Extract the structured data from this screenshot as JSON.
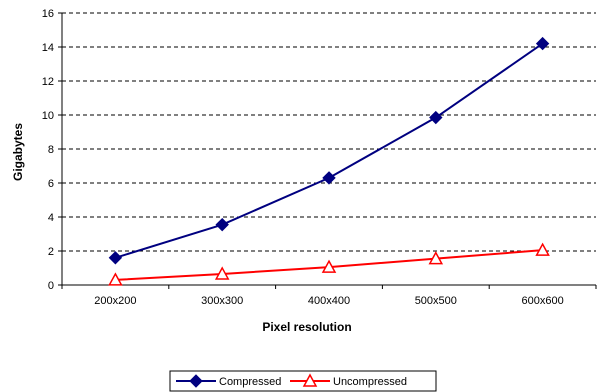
{
  "chart_data": {
    "type": "line",
    "title": "",
    "xlabel": "Pixel resolution",
    "ylabel": "Gigabytes",
    "categories": [
      "200x200",
      "300x300",
      "400x400",
      "500x500",
      "600x600"
    ],
    "ylim": [
      0,
      16
    ],
    "yticks": [
      0,
      2,
      4,
      6,
      8,
      10,
      12,
      14,
      16
    ],
    "grid": "horizontal dashed",
    "legend_position": "bottom",
    "series": [
      {
        "name": "Compressed",
        "values": [
          1.6,
          3.55,
          6.3,
          9.85,
          14.2
        ],
        "color": "#000080",
        "marker": "diamond"
      },
      {
        "name": "Uncompressed",
        "values": [
          0.3,
          0.65,
          1.05,
          1.55,
          2.05
        ],
        "color": "#ff0000",
        "marker": "triangle"
      }
    ]
  }
}
